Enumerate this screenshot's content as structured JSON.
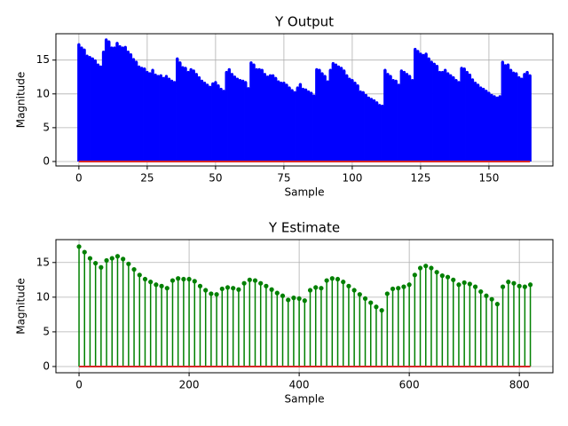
{
  "chart_data": [
    {
      "type": "stem",
      "title": "Y Output",
      "xlabel": "Sample",
      "ylabel": "Magnitude",
      "color": "#0000ff",
      "baseline_color": "#d62728",
      "grid": true,
      "x": [
        0,
        1,
        2,
        3,
        4,
        5,
        6,
        7,
        8,
        9,
        10,
        11,
        12,
        13,
        14,
        15,
        16,
        17,
        18,
        19,
        20,
        21,
        22,
        23,
        24,
        25,
        26,
        27,
        28,
        29,
        30,
        31,
        32,
        33,
        34,
        35,
        36,
        37,
        38,
        39,
        40,
        41,
        42,
        43,
        44,
        45,
        46,
        47,
        48,
        49,
        50,
        51,
        52,
        53,
        54,
        55,
        56,
        57,
        58,
        59,
        60,
        61,
        62,
        63,
        64,
        65,
        66,
        67,
        68,
        69,
        70,
        71,
        72,
        73,
        74,
        75,
        76,
        77,
        78,
        79,
        80,
        81,
        82,
        83,
        84,
        85,
        86,
        87,
        88,
        89,
        90,
        91,
        92,
        93,
        94,
        95,
        96,
        97,
        98,
        99,
        100,
        101,
        102,
        103,
        104,
        105,
        106,
        107,
        108,
        109,
        110,
        111,
        112,
        113,
        114,
        115,
        116,
        117,
        118,
        119,
        120,
        121,
        122,
        123,
        124,
        125,
        126,
        127,
        128,
        129,
        130,
        131,
        132,
        133,
        134,
        135,
        136,
        137,
        138,
        139,
        140,
        141,
        142,
        143,
        144,
        145,
        146,
        147,
        148,
        149,
        150,
        151,
        152,
        153,
        154,
        155,
        156,
        157,
        158,
        159,
        160,
        161,
        162,
        163,
        164,
        165
      ],
      "values": [
        17.3,
        16.8,
        16.5,
        15.6,
        15.4,
        15.2,
        14.9,
        14.3,
        14.0,
        16.2,
        18.0,
        17.7,
        16.8,
        16.8,
        17.5,
        17.0,
        16.8,
        16.9,
        16.2,
        15.8,
        15.1,
        14.7,
        14.0,
        13.8,
        13.7,
        13.2,
        13.0,
        13.5,
        12.8,
        12.6,
        12.7,
        12.3,
        12.6,
        12.2,
        11.9,
        11.7,
        15.2,
        14.6,
        13.9,
        13.8,
        13.2,
        13.6,
        13.4,
        12.9,
        12.4,
        11.9,
        11.6,
        11.3,
        11.0,
        11.5,
        11.7,
        11.2,
        10.7,
        10.4,
        13.2,
        13.6,
        12.9,
        12.5,
        12.2,
        12.0,
        11.9,
        11.7,
        10.8,
        14.6,
        14.3,
        13.6,
        13.6,
        13.5,
        12.9,
        12.5,
        12.7,
        12.7,
        12.3,
        11.8,
        11.6,
        11.6,
        11.3,
        10.9,
        10.5,
        10.2,
        10.9,
        11.4,
        10.7,
        10.6,
        10.3,
        10.1,
        9.7,
        13.6,
        13.5,
        13.0,
        12.6,
        11.8,
        13.5,
        14.5,
        14.3,
        14.0,
        13.8,
        13.4,
        12.7,
        12.2,
        12.0,
        11.6,
        11.2,
        10.3,
        10.2,
        9.8,
        9.4,
        9.2,
        9.0,
        8.7,
        8.3,
        8.2,
        13.5,
        12.9,
        12.6,
        12.0,
        11.9,
        11.3,
        13.4,
        13.2,
        12.9,
        12.6,
        12.0,
        16.6,
        16.3,
        15.9,
        15.7,
        15.9,
        15.2,
        14.7,
        14.4,
        14.1,
        13.2,
        13.2,
        13.5,
        13.0,
        12.7,
        12.4,
        12.0,
        11.7,
        13.8,
        13.7,
        13.2,
        12.8,
        12.1,
        11.6,
        11.3,
        10.9,
        10.7,
        10.4,
        10.1,
        9.8,
        9.6,
        9.4,
        9.6,
        14.7,
        14.2,
        14.3,
        13.5,
        13.1,
        13.0,
        12.4,
        12.2,
        12.9,
        13.2,
        12.7
      ],
      "xlim": [
        -8.4,
        173.4
      ],
      "ylim": [
        -0.66,
        18.9
      ],
      "xticks": [
        0,
        25,
        50,
        75,
        100,
        125,
        150
      ],
      "yticks": [
        0,
        5,
        10,
        15
      ]
    },
    {
      "type": "stem",
      "title": "Y Estimate",
      "xlabel": "Sample",
      "ylabel": "Magnitude",
      "color": "#008000",
      "baseline_color": "#d62728",
      "grid": true,
      "x": [
        0,
        10,
        20,
        30,
        40,
        50,
        60,
        70,
        80,
        90,
        100,
        110,
        120,
        130,
        140,
        150,
        160,
        170,
        180,
        190,
        200,
        210,
        220,
        230,
        240,
        250,
        260,
        270,
        280,
        290,
        300,
        310,
        320,
        330,
        340,
        350,
        360,
        370,
        380,
        390,
        400,
        410,
        420,
        430,
        440,
        450,
        460,
        470,
        480,
        490,
        500,
        510,
        520,
        530,
        540,
        550,
        560,
        570,
        580,
        590,
        600,
        610,
        620,
        630,
        640,
        650,
        660,
        670,
        680,
        690,
        700,
        710,
        720,
        730,
        740,
        750,
        760,
        770,
        780,
        790,
        800,
        810,
        820
      ],
      "values": [
        17.3,
        16.5,
        15.6,
        14.9,
        14.3,
        15.3,
        15.6,
        15.9,
        15.5,
        14.8,
        14.0,
        13.2,
        12.6,
        12.2,
        11.8,
        11.6,
        11.3,
        12.4,
        12.7,
        12.6,
        12.6,
        12.3,
        11.6,
        11.0,
        10.5,
        10.4,
        11.2,
        11.4,
        11.3,
        11.1,
        12.0,
        12.5,
        12.4,
        12.0,
        11.6,
        11.1,
        10.6,
        10.2,
        9.6,
        9.9,
        9.8,
        9.5,
        11.0,
        11.4,
        11.3,
        12.4,
        12.7,
        12.6,
        12.2,
        11.6,
        11.0,
        10.4,
        9.8,
        9.2,
        8.6,
        8.1,
        10.5,
        11.2,
        11.3,
        11.5,
        11.8,
        13.2,
        14.2,
        14.5,
        14.2,
        13.6,
        13.1,
        12.9,
        12.5,
        11.8,
        12.1,
        11.9,
        11.5,
        10.8,
        10.2,
        9.7,
        9.0,
        11.5,
        12.2,
        12.0,
        11.6,
        11.5,
        11.8
      ],
      "xlim": [
        -42,
        861
      ],
      "ylim": [
        -0.9,
        18.3
      ],
      "xticks": [
        0,
        200,
        400,
        600,
        800
      ],
      "yticks": [
        0,
        5,
        10,
        15
      ]
    }
  ]
}
